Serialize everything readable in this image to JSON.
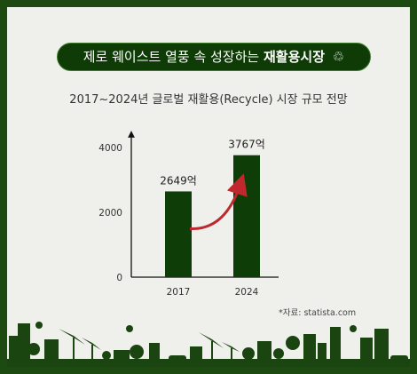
{
  "banner": {
    "prefix": "제로 웨이스트 열풍 속 성장하는",
    "highlight": "재활용시장",
    "icon": "recycle-icon"
  },
  "chart_data": {
    "type": "bar",
    "title": "2017~2024년 글로벌 재활용(Recycle) 시장 규모 전망",
    "categories": [
      "2017",
      "2024"
    ],
    "values": [
      2649,
      3767
    ],
    "value_labels": [
      "2649억",
      "3767억"
    ],
    "y_ticks": [
      "0",
      "2000",
      "4000"
    ],
    "ylim": [
      0,
      4500
    ],
    "grid": false,
    "bar_color": "#0e3d08",
    "arrow_color": "#c0282d"
  },
  "source": "*자료: statista.com",
  "colors": {
    "frame": "#1c4a10",
    "card": "#efefec",
    "skyline": "#1a4410"
  }
}
